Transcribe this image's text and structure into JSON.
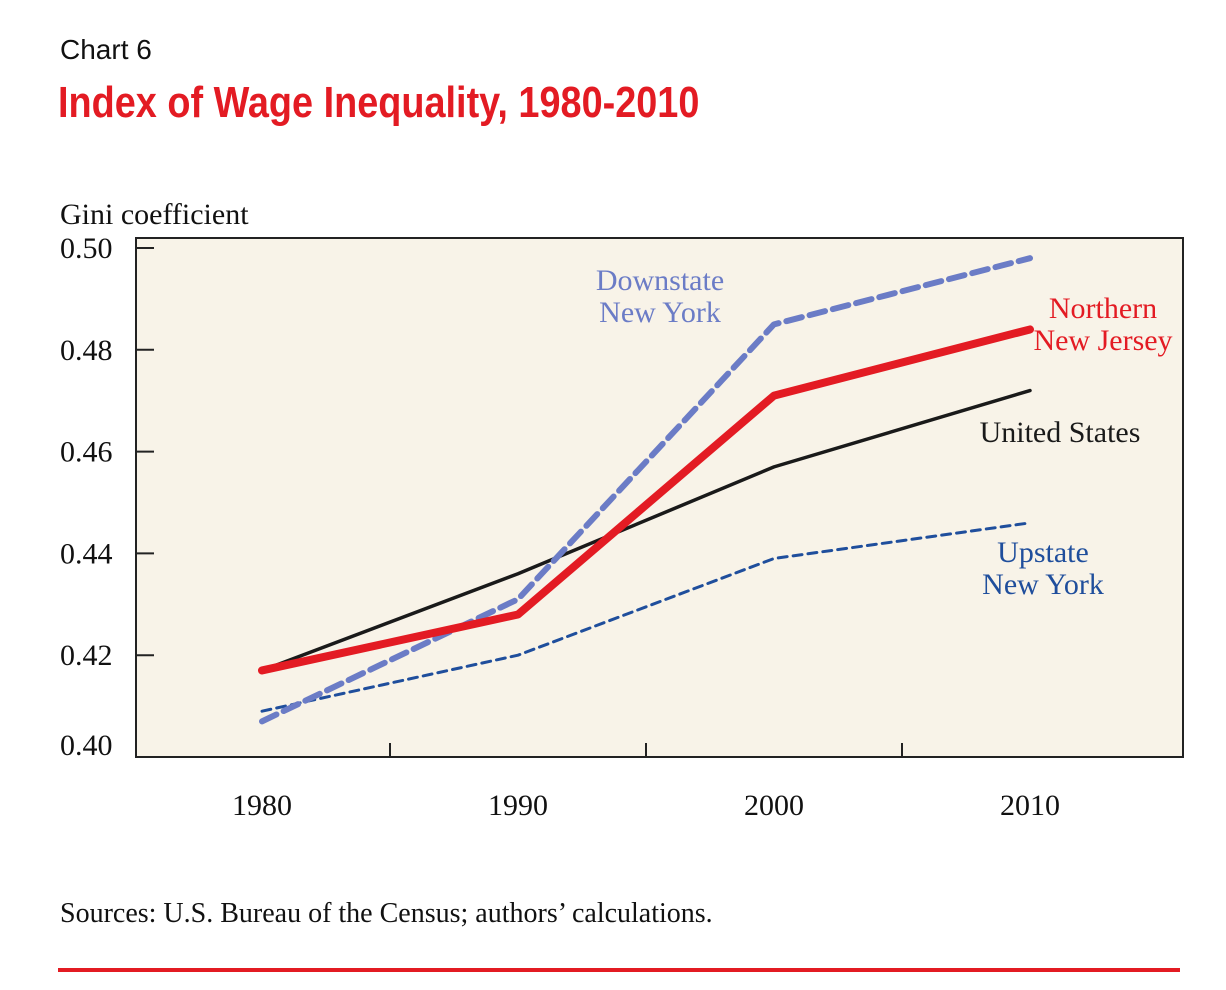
{
  "header": {
    "chart_label": "Chart 6",
    "title": "Index of Wage Inequality, 1980-2010"
  },
  "chart_data": {
    "type": "line",
    "title": "Index of Wage Inequality, 1980-2010",
    "ylabel": "Gini coefficient",
    "xlabel": "",
    "x": [
      1980,
      1990,
      2000,
      2010
    ],
    "x_ticks": [
      "1980",
      "1990",
      "2000",
      "2010"
    ],
    "y_ticks": [
      "0.40",
      "0.42",
      "0.44",
      "0.46",
      "0.48",
      "0.50"
    ],
    "ylim": [
      0.4,
      0.5
    ],
    "grid": false,
    "background_color": "#f8f3e8",
    "series": [
      {
        "name": "Downstate New York",
        "label_lines": [
          "Downstate",
          "New York"
        ],
        "values": [
          0.407,
          0.431,
          0.485,
          0.498
        ],
        "color": "#6b7cc6",
        "style": "dashed-thick"
      },
      {
        "name": "Northern New Jersey",
        "label_lines": [
          "Northern",
          "New Jersey"
        ],
        "values": [
          0.417,
          0.428,
          0.471,
          0.484
        ],
        "color": "#e31b23",
        "style": "solid-thick"
      },
      {
        "name": "United States",
        "label_lines": [
          "United States"
        ],
        "values": [
          0.417,
          0.436,
          0.457,
          0.472
        ],
        "color": "#1a1a1a",
        "style": "solid-thin"
      },
      {
        "name": "Upstate New York",
        "label_lines": [
          "Upstate",
          "New York"
        ],
        "values": [
          0.409,
          0.42,
          0.439,
          0.446
        ],
        "color": "#1f4e9c",
        "style": "dashed-thin"
      }
    ]
  },
  "footer": {
    "source": "Sources: U.S. Bureau of the Census; authors’ calculations."
  }
}
